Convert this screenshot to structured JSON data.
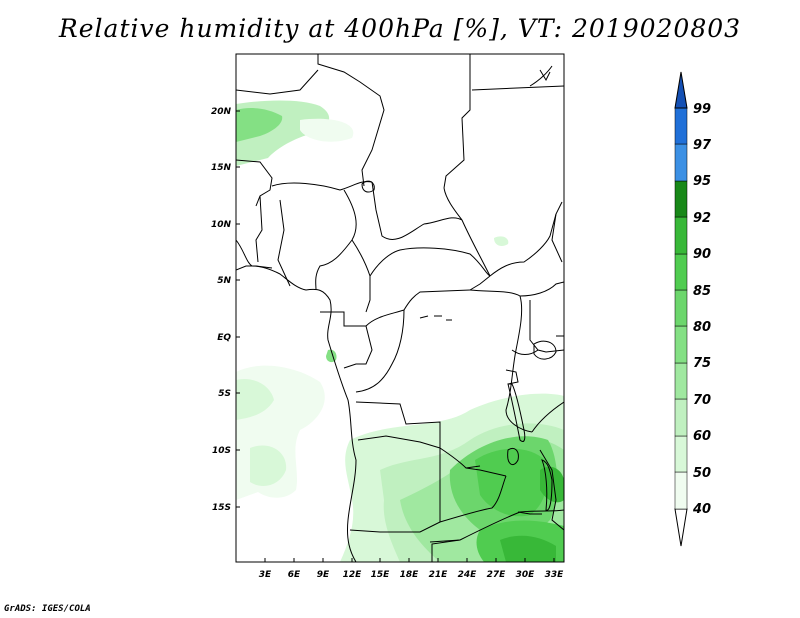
{
  "title": "Relative humidity at 400hPa [%], VT: 2019020803",
  "footer": "GrADS: IGES/COLA",
  "map": {
    "variable": "Relative humidity",
    "level": "400hPa",
    "units": "%",
    "valid_time": "2019020803",
    "lon_range": [
      0,
      34
    ],
    "lat_range": [
      -20,
      25
    ],
    "lat_labels": [
      "20N",
      "15N",
      "10N",
      "5N",
      "EQ",
      "5S",
      "10S",
      "15S"
    ],
    "lon_labels": [
      "3E",
      "6E",
      "9E",
      "12E",
      "15E",
      "18E",
      "21E",
      "24E",
      "27E",
      "30E",
      "33E"
    ]
  },
  "colorbar": {
    "levels": [
      "40",
      "50",
      "60",
      "70",
      "75",
      "80",
      "85",
      "90",
      "92",
      "95",
      "97",
      "99"
    ],
    "colors": [
      "#f0fcf0",
      "#d8f8d8",
      "#c0f0c0",
      "#a0e8a0",
      "#84e084",
      "#6cd66c",
      "#50cc50",
      "#38b838",
      "#24a424",
      "#188818",
      "#3c90e4",
      "#2070d8",
      "#1450b4"
    ]
  }
}
